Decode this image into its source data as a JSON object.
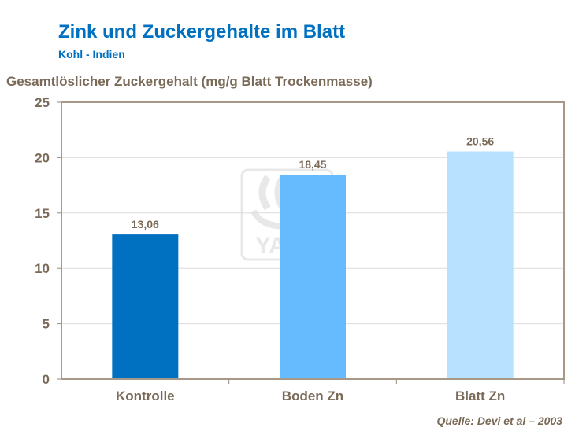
{
  "chart_data": {
    "type": "bar",
    "title": "Zink und Zuckergehalte im Blatt",
    "subtitle": "Kohl - Indien",
    "ylabel": "Gesamtlöslicher Zuckergehalt (mg/g Blatt Trockenmasse)",
    "xlabel": "",
    "categories": [
      "Kontrolle",
      "Boden Zn",
      "Blatt Zn"
    ],
    "values": [
      13.06,
      18.45,
      20.56
    ],
    "value_labels": [
      "13,06",
      "18,45",
      "20,56"
    ],
    "ylim": [
      0,
      25
    ],
    "yticks": [
      0,
      5,
      10,
      15,
      20,
      25
    ],
    "grid": true,
    "colors": [
      "#0070c0",
      "#66bbff",
      "#b8e0ff"
    ],
    "source": "Quelle:  Devi et al – 2003",
    "watermark": "YARA"
  }
}
